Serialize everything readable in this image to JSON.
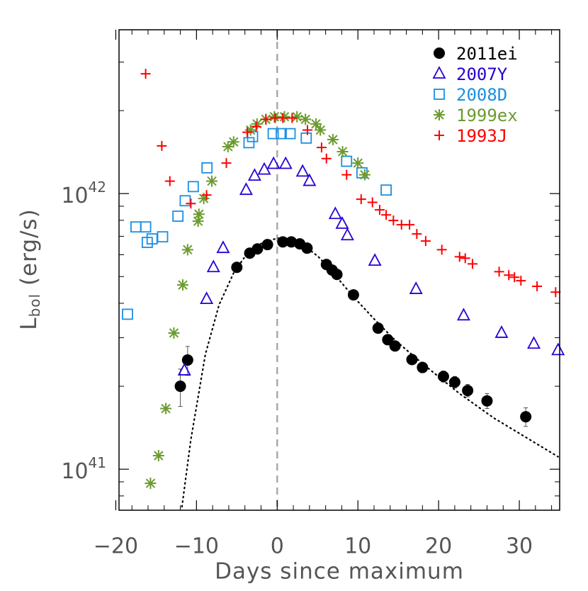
{
  "chart_data": {
    "type": "scatter",
    "x_label": "Days since maximum",
    "y_label": {
      "main": "L",
      "sub": "bol",
      "rest": " (erg/s)"
    },
    "xlim": [
      -19.6,
      35
    ],
    "ylim": [
      7.1e+40,
      3.93e+42
    ],
    "log_y": true,
    "xticks": [
      {
        "value": -20,
        "label": "−20"
      },
      {
        "value": -10,
        "label": "−10"
      },
      0,
      10,
      20,
      30
    ],
    "xminor": [
      -18,
      -16,
      -14,
      -12,
      -8,
      -6,
      -4,
      -2,
      2,
      4,
      6,
      8,
      12,
      14,
      16,
      18,
      22,
      24,
      26,
      28,
      32,
      34
    ],
    "yticks": [
      {
        "value": 1e+41,
        "label": "10^41"
      },
      {
        "value": 1e+42,
        "label": "10^42"
      }
    ],
    "yminor": [
      8e+40,
      9e+40,
      2e+41,
      3e+41,
      4e+41,
      5e+41,
      6e+41,
      7e+41,
      8e+41,
      9e+41,
      2e+42,
      3e+42
    ],
    "reference_x": 0,
    "legend": "upper right",
    "series": [
      {
        "name": "2011ei",
        "color": "#000000",
        "marker": "circle",
        "x": [
          -12.0,
          -11.1,
          -5.0,
          -3.4,
          -2.45,
          -1.2,
          0.7,
          1.75,
          2.8,
          3.7,
          6.1,
          6.8,
          7.4,
          9.45,
          12.5,
          13.7,
          14.6,
          16.7,
          18.0,
          20.6,
          22.0,
          23.6,
          26.0,
          30.8
        ],
        "values": [
          2e+41,
          2.49e+41,
          5.4e+41,
          6.08e+41,
          6.3e+41,
          6.53e+41,
          6.68e+41,
          6.68e+41,
          6.57e+41,
          6.34e+41,
          5.53e+41,
          5.28e+41,
          5.09e+41,
          4.29e+41,
          3.25e+41,
          2.95e+41,
          2.8e+41,
          2.5e+41,
          2.34e+41,
          2.17e+41,
          2.07e+41,
          1.93e+41,
          1.77e+41,
          1.55e+41
        ],
        "errors": [
          3.1e+40,
          3e+40,
          5e+39,
          5e+39,
          5e+39,
          5e+39,
          5e+39,
          5e+39,
          5e+39,
          5e+39,
          5e+39,
          5e+39,
          5e+39,
          6e+39,
          8e+39,
          8e+39,
          8e+39,
          1e+40,
          1e+40,
          1e+40,
          1e+40,
          1e+40,
          1.1e+40,
          1.2e+40
        ]
      },
      {
        "name": "2007Y",
        "color": "#2a00d4",
        "marker": "triangle",
        "x": [
          -11.5,
          -8.75,
          -7.9,
          -6.7,
          -3.85,
          -2.8,
          -1.6,
          -0.45,
          1.05,
          3.15,
          4.0,
          7.2,
          8.05,
          8.7,
          12.1,
          17.2,
          23.1,
          27.8,
          31.8,
          34.8
        ],
        "values": [
          2.28e+41,
          4.14e+41,
          5.4e+41,
          6.34e+41,
          1.03e+42,
          1.16e+42,
          1.22e+42,
          1.28e+42,
          1.28e+42,
          1.2e+42,
          1.11e+42,
          8.42e+41,
          7.76e+41,
          7.05e+41,
          5.7e+41,
          4.5e+41,
          3.61e+41,
          3.12e+41,
          2.85e+41,
          2.7e+41
        ]
      },
      {
        "name": "2008D",
        "color": "#1a8fe3",
        "marker": "square",
        "x": [
          -18.55,
          -17.5,
          -16.3,
          -16.1,
          -15.5,
          -14.2,
          -12.3,
          -11.4,
          -10.4,
          -8.7,
          -3.5,
          -3.05,
          -0.5,
          0.5,
          1.6,
          3.6,
          8.6,
          10.5,
          13.5
        ],
        "values": [
          3.65e+41,
          7.57e+41,
          7.57e+41,
          6.65e+41,
          6.85e+41,
          6.97e+41,
          8.28e+41,
          9.42e+41,
          1.06e+42,
          1.24e+42,
          1.53e+42,
          1.61e+42,
          1.65e+42,
          1.65e+42,
          1.65e+42,
          1.59e+42,
          1.31e+42,
          1.19e+42,
          1.03e+42
        ]
      },
      {
        "name": "1999ex",
        "color": "#6b9b2e",
        "marker": "asterisk",
        "x": [
          -15.7,
          -14.7,
          -13.8,
          -12.8,
          -11.7,
          -11.1,
          -9.8,
          -9.7,
          -9.1,
          -8.1,
          -6.1,
          -5.4,
          -3.3,
          -2.5,
          -1.4,
          -0.35,
          0.9,
          2.45,
          3.5,
          4.8,
          5.35,
          6.9,
          8.1,
          10.0,
          10.85
        ],
        "values": [
          8.89e+40,
          1.12e+41,
          1.66e+41,
          3.12e+41,
          4.66e+41,
          6.26e+41,
          7.94e+41,
          8.42e+41,
          9.6e+41,
          1.11e+42,
          1.48e+42,
          1.54e+42,
          1.7e+42,
          1.79e+42,
          1.86e+42,
          1.9e+42,
          1.9e+42,
          1.9e+42,
          1.86e+42,
          1.79e+42,
          1.7e+42,
          1.57e+42,
          1.42e+42,
          1.29e+42,
          1.17e+42
        ]
      },
      {
        "name": "1993J",
        "color": "#ff0000",
        "marker": "plus",
        "x": [
          -16.3,
          -14.3,
          -13.3,
          -10.7,
          -8.75,
          -6.3,
          -3.7,
          -2.6,
          -1.4,
          -0.25,
          0.7,
          1.85,
          3.75,
          5.5,
          6.1,
          8.6,
          10.4,
          11.8,
          12.7,
          13.5,
          14.4,
          15.4,
          16.4,
          17.3,
          18.4,
          20.4,
          22.6,
          23.3,
          24.2,
          27.5,
          28.7,
          29.4,
          30.2,
          32.2,
          34.5
        ],
        "values": [
          2.72e+42,
          1.49e+42,
          1.11e+42,
          9.2e+41,
          9.88e+41,
          1.29e+42,
          1.67e+42,
          1.75e+42,
          1.86e+42,
          1.88e+42,
          1.88e+42,
          1.88e+42,
          1.7e+42,
          1.47e+42,
          1.34e+42,
          1.17e+42,
          9.54e+41,
          9.3e+41,
          8.73e+41,
          8.37e+41,
          7.99e+41,
          7.71e+41,
          7.71e+41,
          7.14e+41,
          6.73e+41,
          6.26e+41,
          5.9e+41,
          5.83e+41,
          5.56e+41,
          5.21e+41,
          5.06e+41,
          4.97e+41,
          4.83e+41,
          4.61e+41,
          4.39e+41
        ]
      },
      {
        "color": "#000000",
        "style": "dotted",
        "x": [
          -11.8,
          -10.7,
          -8.9,
          -7.2,
          -5.4,
          -3.7,
          -1.9,
          0,
          1.6,
          3.3,
          5.1,
          6.8,
          9.4,
          12.0,
          14.6,
          18.2,
          22.6,
          26.9,
          31.3,
          34.8
        ],
        "values": [
          7.31e+40,
          1.28e+41,
          2.61e+41,
          3.95e+41,
          5.15e+41,
          6.08e+41,
          6.61e+41,
          6.89e+41,
          6.86e+41,
          6.49e+41,
          5.9e+41,
          5.21e+41,
          4.24e+41,
          3.51e+41,
          2.94e+41,
          2.39e+41,
          1.88e+41,
          1.53e+41,
          1.28e+41,
          1.11e+41
        ]
      }
    ]
  }
}
